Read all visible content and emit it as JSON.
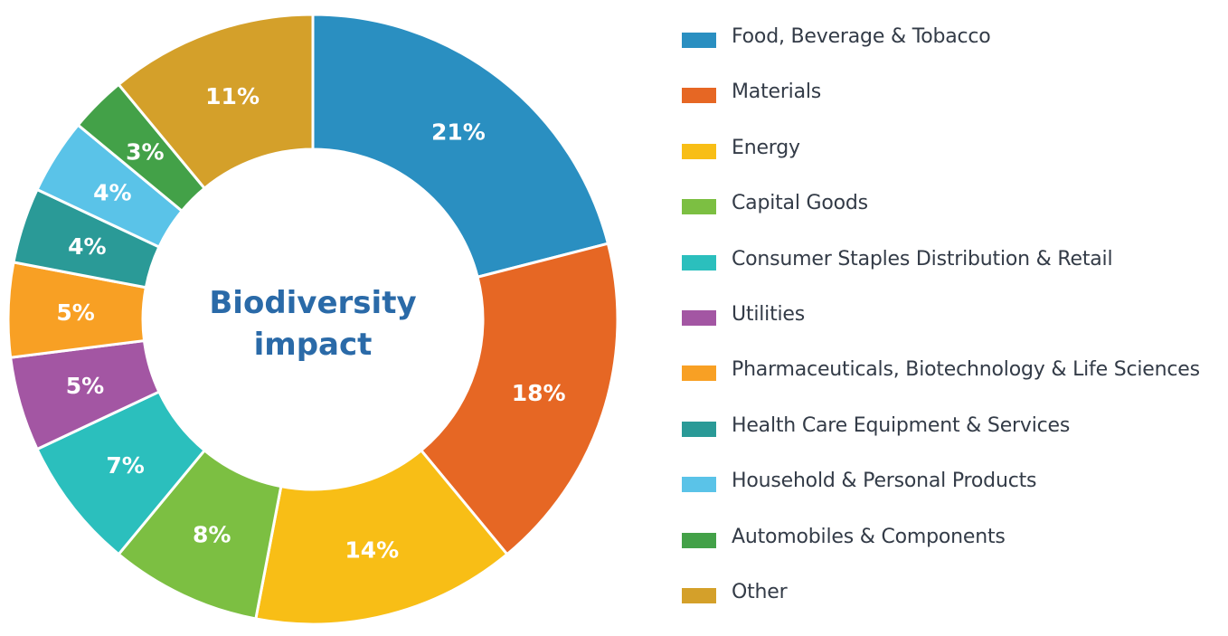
{
  "chart_data": {
    "type": "pie",
    "variant": "donut",
    "title": "Biodiversity impact",
    "legend_position": "right",
    "categories": [
      "Food, Beverage & Tobacco",
      "Materials",
      "Energy",
      "Capital Goods",
      "Consumer Staples Distribution & Retail",
      "Utilities",
      "Pharmaceuticals, Biotechnology & Life Sciences",
      "Health Care Equipment & Services",
      "Household & Personal Products",
      "Automobiles & Components",
      "Other"
    ],
    "values": [
      21,
      18,
      14,
      8,
      7,
      5,
      5,
      4,
      4,
      3,
      11
    ],
    "labels": [
      "21%",
      "18%",
      "14%",
      "8%",
      "7%",
      "5%",
      "5%",
      "4%",
      "4%",
      "3%",
      "11%"
    ],
    "colors": [
      "#2a8fc1",
      "#e66724",
      "#f8be16",
      "#7cbf42",
      "#2bbfbd",
      "#a356a3",
      "#f8a024",
      "#2a9a97",
      "#5ac3e8",
      "#43a148",
      "#d4a02a"
    ]
  }
}
